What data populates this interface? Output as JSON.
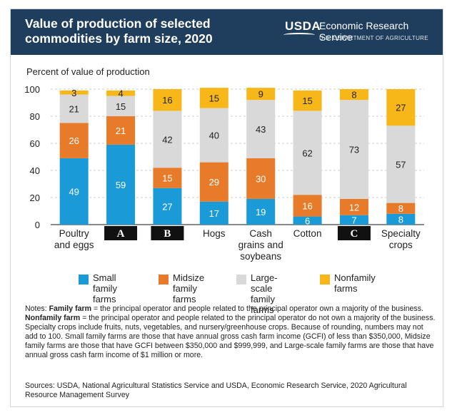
{
  "header": {
    "title": "Value of production of selected commodities by farm size, 2020",
    "logo_text": "USDA",
    "org_name": "Economic Research Service",
    "dept_name": "U.S. DEPARTMENT OF AGRICULTURE"
  },
  "chart_data": {
    "type": "bar",
    "stacked": true,
    "title": "Value of production of selected commodities by farm size, 2020",
    "ylabel": "Percent of value of production",
    "ylim": [
      0,
      100
    ],
    "yticks": [
      0,
      20,
      40,
      60,
      80,
      100
    ],
    "categories": [
      "Poultry and eggs",
      "A",
      "B",
      "Hogs",
      "Cash grains and soybeans",
      "Cotton",
      "C",
      "Specialty crops"
    ],
    "category_lines": [
      [
        "Poultry",
        "and eggs"
      ],
      [
        "A"
      ],
      [
        "B"
      ],
      [
        "Hogs"
      ],
      [
        "Cash",
        "grains and",
        "soybeans"
      ],
      [
        "Cotton"
      ],
      [
        "C"
      ],
      [
        "Specialty",
        "crops"
      ]
    ],
    "masked_categories": [
      1,
      2,
      6
    ],
    "series": [
      {
        "name": "Small family farms",
        "color": "#1a9ad6",
        "values": [
          49,
          59,
          27,
          17,
          19,
          6,
          7,
          8
        ]
      },
      {
        "name": "Midsize family farms",
        "color": "#e87b2a",
        "values": [
          26,
          21,
          15,
          29,
          30,
          16,
          12,
          8
        ]
      },
      {
        "name": "Large-scale family farms",
        "color": "#d9d9d9",
        "values": [
          21,
          15,
          42,
          40,
          43,
          62,
          73,
          57
        ]
      },
      {
        "name": "Nonfamily farms",
        "color": "#f7b718",
        "values": [
          3,
          4,
          16,
          15,
          9,
          15,
          8,
          27
        ]
      }
    ],
    "legend_position": "bottom"
  },
  "legend": [
    {
      "line1": "Small family",
      "line2": "farms",
      "color": "#1a9ad6"
    },
    {
      "line1": "Midsize",
      "line2": "family farms",
      "color": "#e87b2a"
    },
    {
      "line1": "Large-scale",
      "line2": "family farms",
      "color": "#d9d9d9"
    },
    {
      "line1": "Nonfamily",
      "line2": "farms",
      "color": "#f7b718"
    }
  ],
  "notes": {
    "prefix": "Notes: ",
    "family_term": "Family farm",
    "family_def": " = the principal operator and people related to the principal operator own a majority of the business. ",
    "nonfamily_term": "Nonfamily farm",
    "rest": " = the principal operator and people related to the principal operator do not own a majority of the business. Specialty crops include fruits, nuts, vegetables, and nursery/greenhouse crops. Because of rounding, numbers may not add to 100. Small family farms are those that have annual gross cash farm income (GCFI) of less than $350,000, Midsize family farms are those that have GCFI between $350,000 and $999,999, and Large-scale family farms are those that have annual gross cash farm income of $1 million or more."
  },
  "sources": "Sources: USDA, National Agricultural Statistics Service and USDA, Economic Research Service, 2020 Agricultural Resource Management Survey"
}
